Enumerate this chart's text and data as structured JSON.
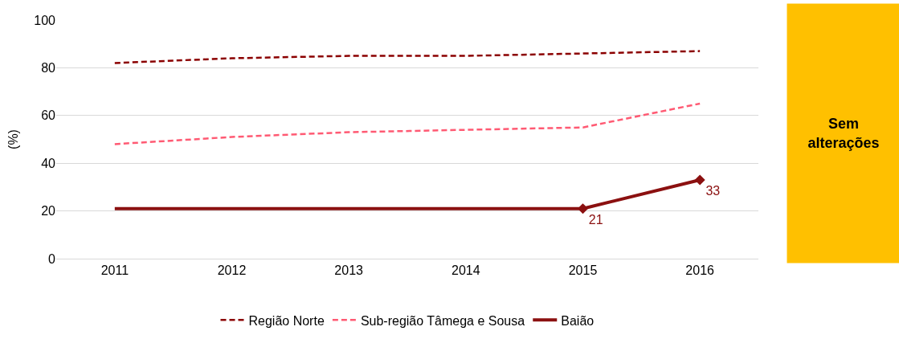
{
  "chart_data": {
    "type": "line",
    "ylabel": "(%)",
    "categories": [
      "2011",
      "2012",
      "2013",
      "2014",
      "2015",
      "2016"
    ],
    "series": [
      {
        "name": "Região Norte",
        "color": "#8b0000",
        "line_style": "dashed",
        "values": [
          82,
          84,
          85,
          85,
          86,
          87
        ]
      },
      {
        "name": "Sub-região Tâmega e Sousa",
        "color": "#ff5a73",
        "line_style": "dashed",
        "values": [
          48,
          51,
          53,
          54,
          55,
          65
        ]
      },
      {
        "name": "Baião",
        "color": "#8b1010",
        "line_style": "solid",
        "values": [
          21,
          21,
          21,
          21,
          21,
          33
        ],
        "value_labels": [
          null,
          null,
          null,
          null,
          "21",
          "33"
        ]
      }
    ],
    "ylim": [
      0,
      100
    ],
    "yticks": [
      0,
      20,
      40,
      60,
      80,
      100
    ],
    "grid": "y",
    "legend": "bottom",
    "marker": "none",
    "annotations": [
      "Sem alterações"
    ]
  }
}
